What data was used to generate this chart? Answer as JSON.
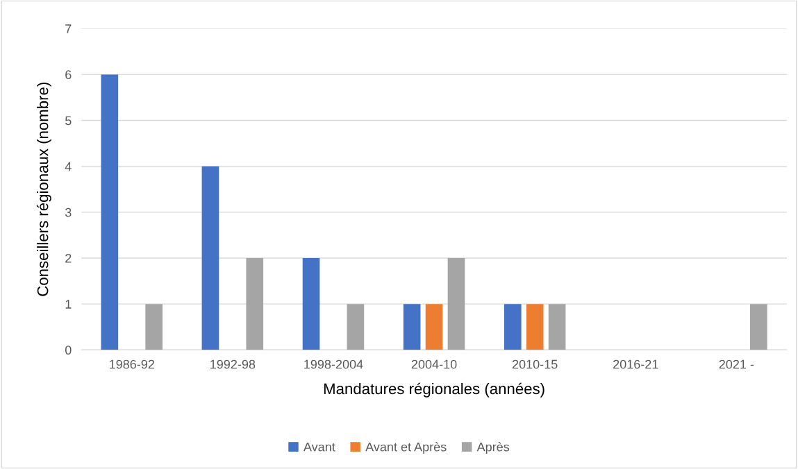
{
  "chart_data": {
    "type": "bar",
    "xlabel": "Mandatures régionales (années)",
    "ylabel": "Conseillers régionaux (nombre)",
    "categories": [
      "1986-92",
      "1992-98",
      "1998-2004",
      "2004-10",
      "2010-15",
      "2016-21",
      "2021 -"
    ],
    "series": [
      {
        "name": "Avant",
        "color": "#4472c4",
        "values": [
          6,
          4,
          2,
          1,
          1,
          0,
          0
        ]
      },
      {
        "name": "Avant et Après",
        "color": "#ed7d31",
        "values": [
          0,
          0,
          0,
          1,
          1,
          0,
          0
        ]
      },
      {
        "name": "Après",
        "color": "#a5a5a5",
        "values": [
          1,
          2,
          1,
          2,
          1,
          0,
          1
        ]
      }
    ],
    "ylim": [
      0,
      7
    ],
    "yticks": [
      0,
      1,
      2,
      3,
      4,
      5,
      6,
      7
    ],
    "grid": "y",
    "legend": "bottom"
  }
}
